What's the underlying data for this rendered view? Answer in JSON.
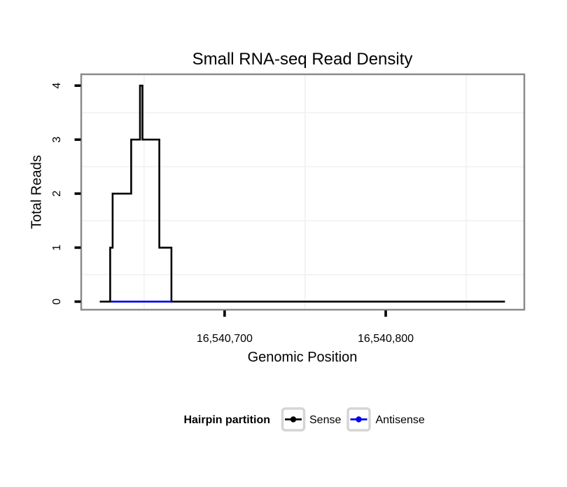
{
  "chart_data": {
    "type": "line",
    "subtype": "step",
    "title": "Small RNA-seq Read Density",
    "xlabel": "Genomic Position",
    "ylabel": "Total Reads",
    "xlim": [
      16540611,
      16540886
    ],
    "ylim": [
      -0.15,
      4.21
    ],
    "x_ticks": [
      {
        "value": 16540700,
        "label": "16,540,700"
      },
      {
        "value": 16540800,
        "label": "16,540,800"
      }
    ],
    "y_ticks": [
      {
        "value": 0,
        "label": "0"
      },
      {
        "value": 1,
        "label": "1"
      },
      {
        "value": 2,
        "label": "2"
      },
      {
        "value": 3,
        "label": "3"
      },
      {
        "value": 4,
        "label": "4"
      }
    ],
    "grid": {
      "x_minor": [
        16540650,
        16540750,
        16540850
      ],
      "y_minor": [
        0.5,
        1.5,
        2.5,
        3.5
      ],
      "color": "#f2f2f2"
    },
    "panel_border_color": "#8a8a8a",
    "tick_color": "#000000",
    "legend_key_border_color": "#d5d5d5",
    "series": [
      {
        "name": "Sense",
        "color": "#000000",
        "points": [
          [
            16540622.5,
            0
          ],
          [
            16540629,
            0
          ],
          [
            16540629,
            1
          ],
          [
            16540630.5,
            1
          ],
          [
            16540630.5,
            2
          ],
          [
            16540642,
            2
          ],
          [
            16540642,
            3
          ],
          [
            16540647.5,
            3
          ],
          [
            16540647.5,
            4
          ],
          [
            16540649,
            4
          ],
          [
            16540649,
            3
          ],
          [
            16540659.5,
            3
          ],
          [
            16540659.5,
            1
          ],
          [
            16540667,
            1
          ],
          [
            16540667,
            0
          ],
          [
            16540874,
            0
          ]
        ]
      },
      {
        "name": "Antisense",
        "color": "#0000ee",
        "points": [
          [
            16540629.5,
            0
          ],
          [
            16540667.5,
            0
          ]
        ]
      }
    ],
    "legend": {
      "title": "Hairpin partition",
      "position": "bottom",
      "entries": [
        {
          "label": "Sense",
          "color": "#000000"
        },
        {
          "label": "Antisense",
          "color": "#0000ee"
        }
      ]
    }
  }
}
